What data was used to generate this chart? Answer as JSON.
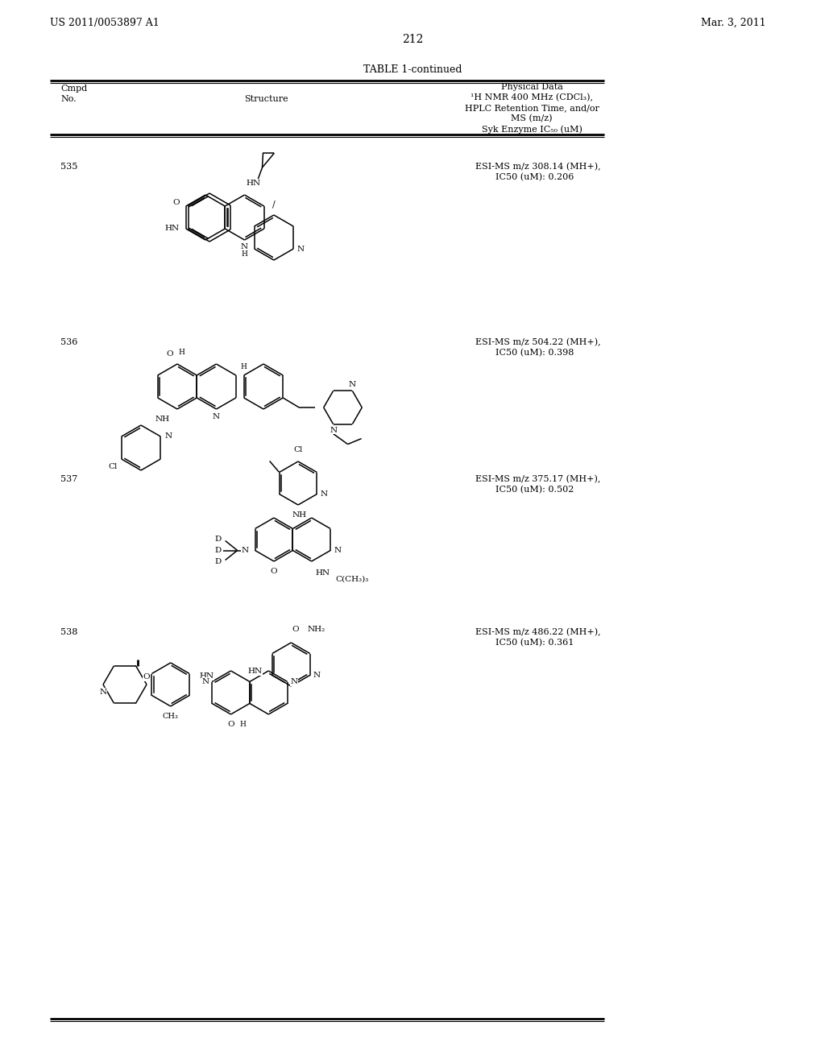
{
  "page_number": "212",
  "patent_number": "US 2011/0053897 A1",
  "patent_date": "Mar. 3, 2011",
  "table_title": "TABLE 1-continued",
  "col_header_cmpd": "Cmpd",
  "col_header_no": "No.",
  "col_header_structure": "Structure",
  "col_header_phys1": "Physical Data",
  "col_header_phys2": "¹H NMR 400 MHz (CDCl₃),",
  "col_header_phys3": "HPLC Retention Time, and/or",
  "col_header_phys4": "MS (m/z)",
  "col_header_phys5": "Syk Enzyme IC₅₀ (uM)",
  "compounds": [
    {
      "number": "535",
      "data_line1": "ESI-MS m/z 308.14 (MH+),",
      "data_line2": "IC50 (uM): 0.206"
    },
    {
      "number": "536",
      "data_line1": "ESI-MS m/z 504.22 (MH+),",
      "data_line2": "IC50 (uM): 0.398"
    },
    {
      "number": "537",
      "data_line1": "ESI-MS m/z 375.17 (MH+),",
      "data_line2": "IC50 (uM): 0.502"
    },
    {
      "number": "538",
      "data_line1": "ESI-MS m/z 486.22 (MH+),",
      "data_line2": "IC50 (uM): 0.361"
    }
  ],
  "bg_color": "#ffffff"
}
